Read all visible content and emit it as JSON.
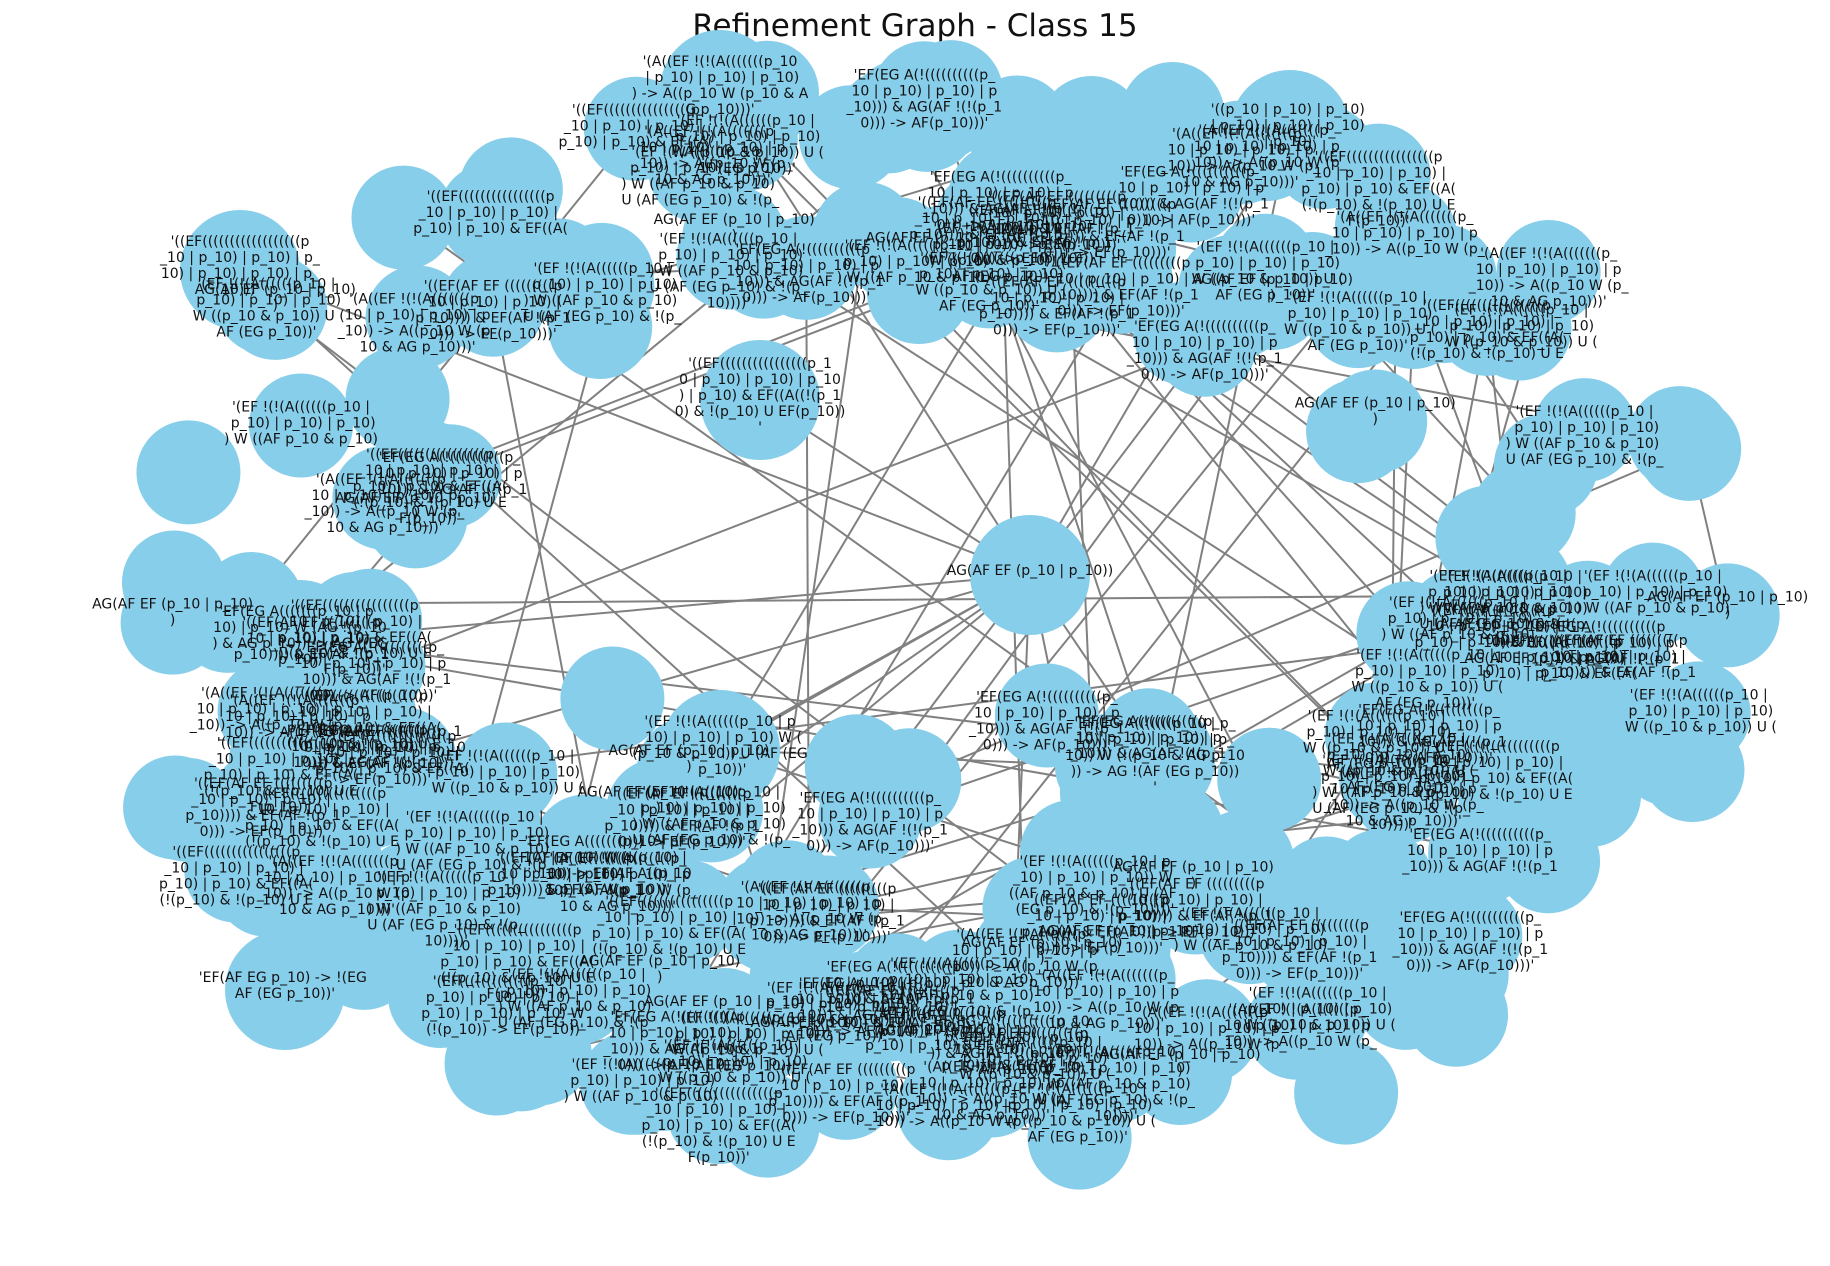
{
  "title": "Refinement Graph - Class 15",
  "style": {
    "node_color": "#87CEEB",
    "edge_color": "#808080",
    "label_color": "#111111"
  },
  "nodes": [
    {
      "id": "n_center",
      "label": "AG(AF EF (p_10 | p_10))"
    },
    {
      "id": "n_right1",
      "label": "'EF(EG A(((((((p_10 | p_10) | p_10) | p_10) | p_10)) W (!(p_10 & AG p_10)) -> AG !(AF (EG p_10))'"
    },
    {
      "id": "n_right2",
      "label": "'(EF !(!(A((((((p_10 | p_10) | p_10) | p_10)) W ((AF p_10 & p_10) U (AF (EG p_10) & !(p_10))))'"
    },
    {
      "id": "n_lowleft",
      "label": "'EF(AF EG p_10) -> !(EG AF (EG p_10))'"
    },
    {
      "id": "n_left",
      "label": "'((EF(AF EF (((((((((p_10 | p_10) | p_10) | p_10)))) & EF(AF !(p_10))) -> EF(p_10)))'"
    },
    {
      "id": "n_upperleft",
      "label": "'((EF((((((((((((((((((p_10 | p_10) | p_10) | p_10) | p_10) | p_10) | p_10)))'"
    },
    {
      "id": "n_top",
      "label": "'(A((EF !(!(A(((((((p_10 | p_10) | p_10) | p_10)) -> A((p_10 W (p_10 & AG p_10)))'"
    },
    {
      "id": "n_topright",
      "label": "'((p_10 | p_10) | p_10) | p_10) | p_10) | p_10) | p_10)'"
    },
    {
      "id": "n_mid1",
      "label": "'(EF !(!(A((((((p_10 | p_10) | p_10) | p_10) W ((p_10 & p_10)) U (AF (EG p_10))'"
    },
    {
      "id": "n_mid2",
      "label": "'EF(EG A(((((((p_10 | p_10) | p_10) W (!(p_10) | p_10)) -> EF(AF A((p_10 & p_10) W p_10))'"
    },
    {
      "id": "n_bottom",
      "label": "'EF(EG A(!((((((((((p_10 | p_10) | p_10) | p_10))) & AG(AF !(!(p_10))) -> AF(p_10)))'"
    },
    {
      "id": "n_bottomleft",
      "label": "'(EF(((((((((((((p_10 | p_10) | p_10) | p_10) | p_10) | p_10) | p_10) W (!(p_10)) -> EF(p_10))'"
    },
    {
      "id": "n_upmid",
      "label": "'((EF((((((((((((((((p_10 | p_10) | p_10) | p_10) | p_10) & EF((A((!(p_10) & !(p_10) U EF(p_10))'"
    },
    {
      "id": "n_leftmid",
      "label": "'EF(EG A(((((((p_10 | p_10) | p_10) W (AG !(p_10) & AG p_10)) -> AG !(EG p_10))'"
    }
  ]
}
